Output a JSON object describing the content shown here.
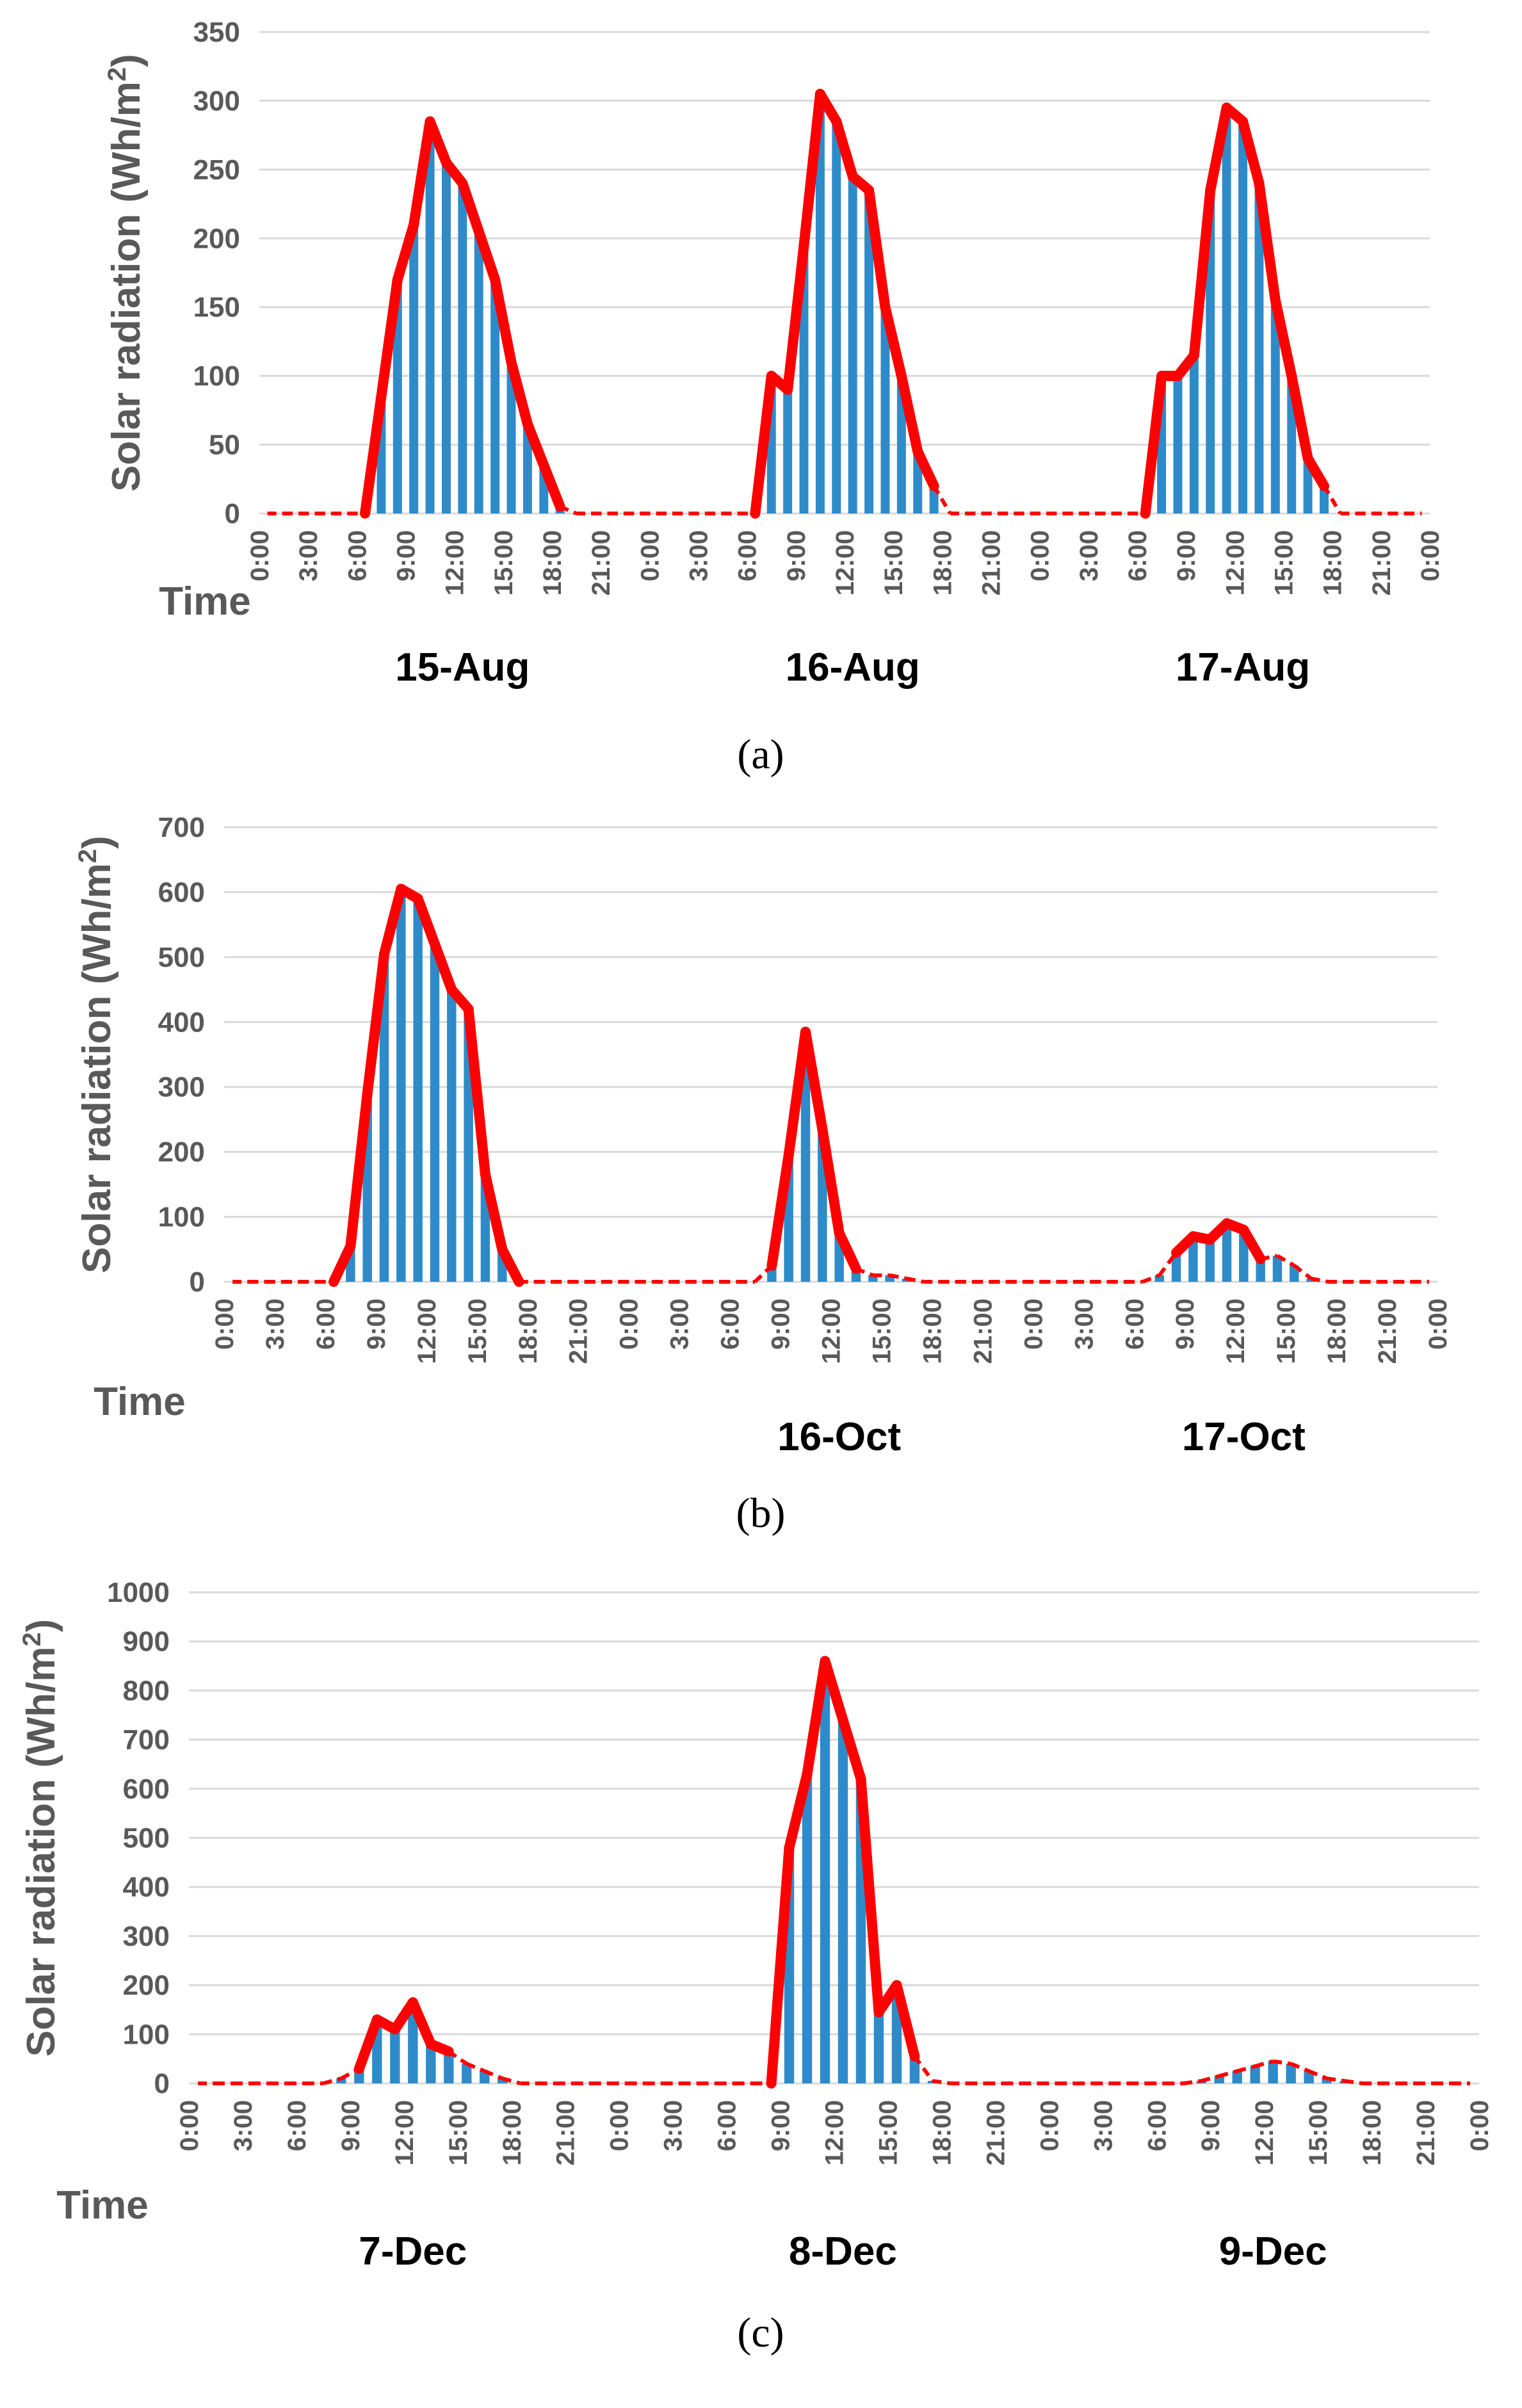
{
  "colors": {
    "bar": "#2E8BC9",
    "line": "#FF0000",
    "grid": "#D9D9D9",
    "tick_text": "#595959"
  },
  "time_ticks": [
    "0:00",
    "3:00",
    "6:00",
    "9:00",
    "12:00",
    "15:00",
    "18:00",
    "21:00",
    "0:00",
    "3:00",
    "6:00",
    "9:00",
    "12:00",
    "15:00",
    "18:00",
    "21:00",
    "0:00",
    "3:00",
    "6:00",
    "9:00",
    "12:00",
    "15:00",
    "18:00",
    "21:00",
    "0:00"
  ],
  "chart_data": [
    {
      "type": "bar",
      "panel_label": "(a)",
      "title": "",
      "xlabel": "Time",
      "ylabel_main": "Solar radiation (Wh/m",
      "ylabel_sup": "2",
      "ylabel_end": ")",
      "ylim": [
        0,
        350
      ],
      "yticks": [
        0,
        50,
        100,
        150,
        200,
        250,
        300,
        350
      ],
      "day_labels": [
        {
          "text": "15-Aug",
          "center_hour": 12.5
        },
        {
          "text": "16-Aug",
          "center_hour": 36.5
        },
        {
          "text": "17-Aug",
          "center_hour": 60.5
        }
      ],
      "series": [
        {
          "name": "Solar radiation",
          "hourly_values": [
            0,
            0,
            0,
            0,
            0,
            0,
            0,
            85,
            170,
            210,
            285,
            255,
            240,
            205,
            170,
            110,
            65,
            35,
            5,
            0,
            0,
            0,
            0,
            0,
            0,
            0,
            0,
            0,
            0,
            0,
            0,
            100,
            90,
            195,
            305,
            285,
            245,
            235,
            150,
            100,
            45,
            20,
            0,
            0,
            0,
            0,
            0,
            0,
            0,
            0,
            0,
            0,
            0,
            0,
            0,
            100,
            100,
            115,
            235,
            295,
            285,
            240,
            155,
            100,
            40,
            20,
            0,
            0,
            0,
            0,
            0,
            0
          ]
        }
      ]
    },
    {
      "type": "bar",
      "panel_label": "(b)",
      "title": "",
      "xlabel": "Time",
      "ylabel_main": "Solar radiation (Wh/m",
      "ylabel_sup": "2",
      "ylabel_end": ")",
      "ylim": [
        0,
        700
      ],
      "yticks": [
        0,
        100,
        200,
        300,
        400,
        500,
        600,
        700
      ],
      "day_labels": [
        {
          "text": "16-Oct",
          "center_hour": 36.5
        },
        {
          "text": "17-Oct",
          "center_hour": 60.5
        }
      ],
      "series": [
        {
          "name": "Solar radiation",
          "hourly_values": [
            0,
            0,
            0,
            0,
            0,
            0,
            0,
            55,
            290,
            505,
            605,
            590,
            520,
            450,
            420,
            165,
            50,
            0,
            0,
            0,
            0,
            0,
            0,
            0,
            0,
            0,
            0,
            0,
            0,
            0,
            0,
            0,
            25,
            195,
            385,
            235,
            75,
            20,
            10,
            10,
            5,
            0,
            0,
            0,
            0,
            0,
            0,
            0,
            0,
            0,
            0,
            0,
            0,
            0,
            0,
            10,
            45,
            70,
            65,
            90,
            80,
            35,
            40,
            25,
            5,
            0,
            0,
            0,
            0,
            0,
            0,
            0
          ]
        }
      ]
    },
    {
      "type": "bar",
      "panel_label": "(c)",
      "title": "",
      "xlabel": "Time",
      "ylabel_main": "Solar radiation (Wh/m",
      "ylabel_sup": "2",
      "ylabel_end": ")",
      "ylim": [
        0,
        1000
      ],
      "yticks": [
        0,
        100,
        200,
        300,
        400,
        500,
        600,
        700,
        800,
        900,
        1000
      ],
      "day_labels": [
        {
          "text": "7-Dec",
          "center_hour": 12.5
        },
        {
          "text": "8-Dec",
          "center_hour": 36.5
        },
        {
          "text": "9-Dec",
          "center_hour": 60.5
        }
      ],
      "series": [
        {
          "name": "Solar radiation",
          "hourly_values": [
            0,
            0,
            0,
            0,
            0,
            0,
            0,
            0,
            10,
            30,
            130,
            110,
            165,
            80,
            65,
            40,
            25,
            10,
            0,
            0,
            0,
            0,
            0,
            0,
            0,
            0,
            0,
            0,
            0,
            0,
            0,
            0,
            0,
            480,
            630,
            860,
            740,
            620,
            145,
            200,
            55,
            5,
            0,
            0,
            0,
            0,
            0,
            0,
            0,
            0,
            0,
            0,
            0,
            0,
            0,
            0,
            5,
            15,
            25,
            35,
            45,
            40,
            25,
            10,
            5,
            0,
            0,
            0,
            0,
            0,
            0,
            0
          ]
        }
      ]
    }
  ]
}
